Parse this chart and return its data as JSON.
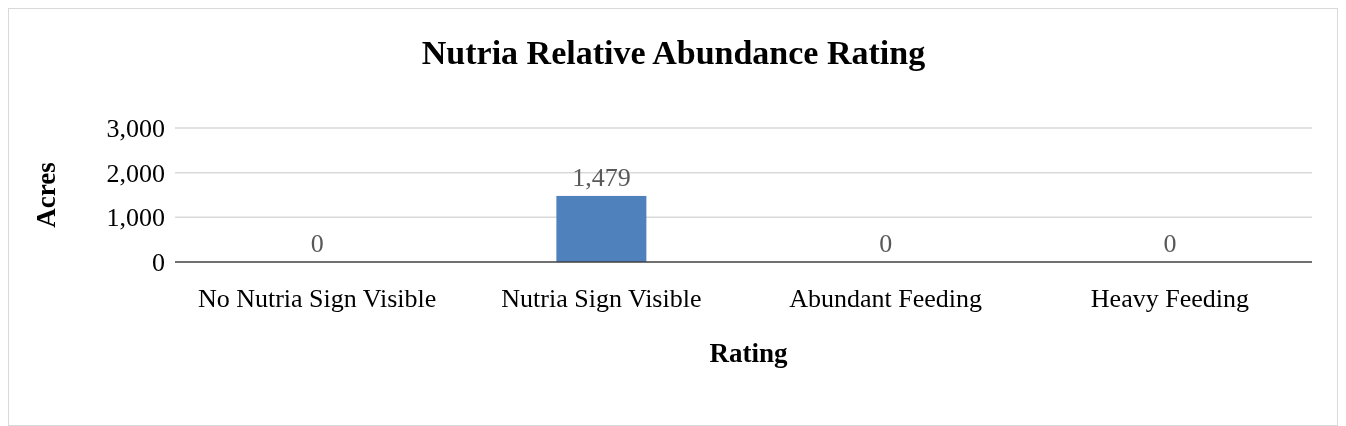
{
  "chart_data": {
    "type": "bar",
    "title": "Nutria Relative Abundance Rating",
    "xlabel": "Rating",
    "ylabel": "Acres",
    "categories": [
      "No Nutria Sign Visible",
      "Nutria Sign Visible",
      "Abundant Feeding",
      "Heavy Feeding"
    ],
    "values": [
      0,
      1479,
      0,
      0
    ],
    "color": "#4f81bd",
    "ylim": [
      0,
      3000
    ],
    "yticks": [
      {
        "value": 0,
        "label": "0"
      },
      {
        "value": 1000,
        "label": "1,000"
      },
      {
        "value": 2000,
        "label": "2,000"
      },
      {
        "value": 3000,
        "label": "3,000"
      }
    ],
    "grid": "y",
    "value_labels": [
      "0",
      "1,479",
      "0",
      "0"
    ]
  }
}
